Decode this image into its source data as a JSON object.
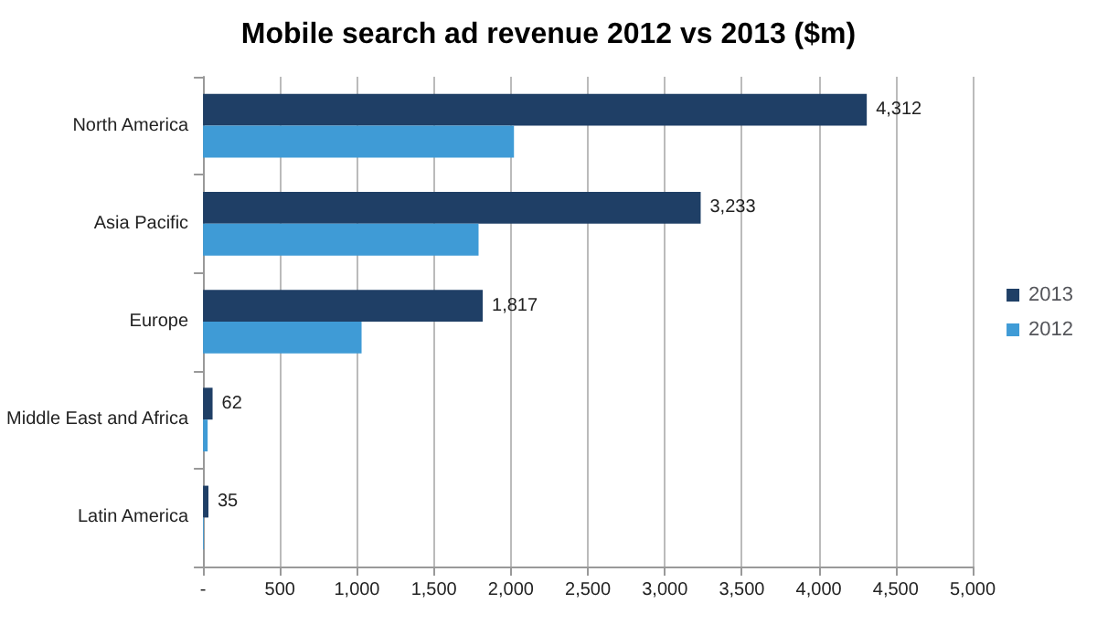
{
  "chart_data": {
    "type": "bar",
    "orientation": "horizontal",
    "title": "Mobile search ad revenue 2012 vs 2013 ($m)",
    "categories": [
      "North America",
      "Asia Pacific",
      "Europe",
      "Middle East and Africa",
      "Latin America"
    ],
    "series": [
      {
        "name": "2013",
        "color": "#1f3f66",
        "values": [
          4312,
          3233,
          1817,
          62,
          35
        ],
        "value_labels": [
          "4,312",
          "3,233",
          "1,817",
          "62",
          "35"
        ]
      },
      {
        "name": "2012",
        "color": "#3f9bd6",
        "values": [
          2020,
          1790,
          1030,
          30,
          5
        ]
      }
    ],
    "xlim": [
      0,
      5000
    ],
    "xticks": [
      {
        "value": 0,
        "label": "-"
      },
      500,
      {
        "value": 1000,
        "label": "1,000"
      },
      {
        "value": 1500,
        "label": "1,500"
      },
      {
        "value": 2000,
        "label": "2,000"
      },
      {
        "value": 2500,
        "label": "2,500"
      },
      {
        "value": 3000,
        "label": "3,000"
      },
      {
        "value": 3500,
        "label": "3,500"
      },
      {
        "value": 4000,
        "label": "4,000"
      },
      {
        "value": 4500,
        "label": "4,500"
      },
      {
        "value": 5000,
        "label": "5,000"
      }
    ],
    "grid": "x",
    "legend": "right"
  }
}
